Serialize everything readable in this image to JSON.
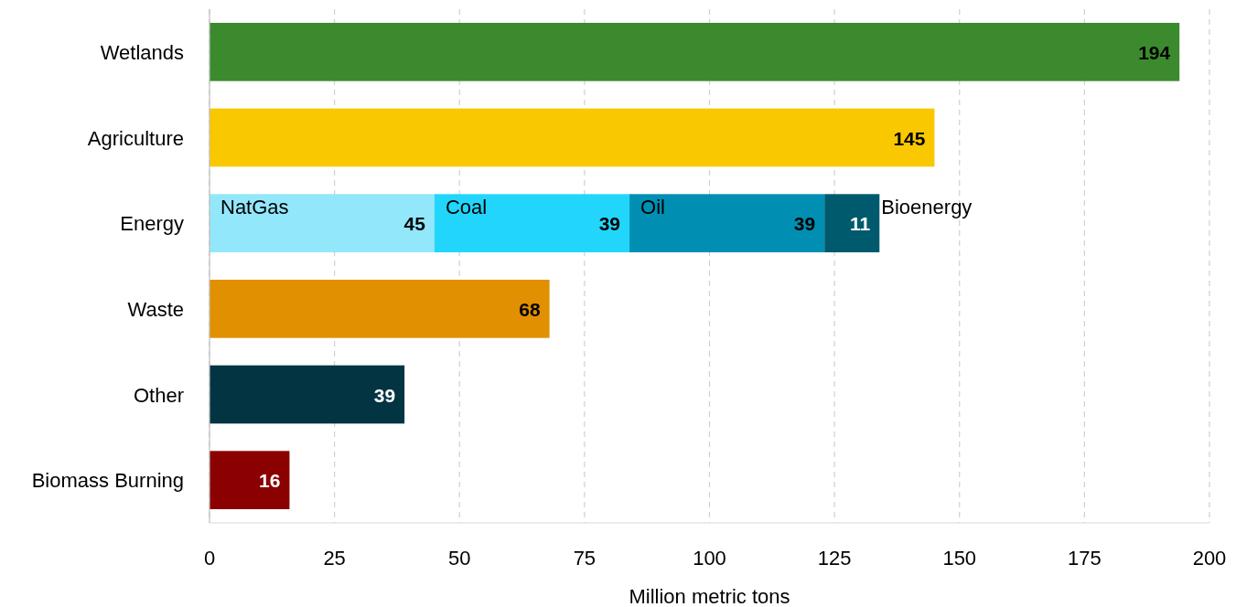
{
  "chart_data": {
    "type": "bar",
    "orientation": "horizontal",
    "stacked": true,
    "xlabel": "Million metric tons",
    "categories": [
      "Wetlands",
      "Agriculture",
      "Energy",
      "Waste",
      "Other",
      "Biomass Burning"
    ],
    "series": [
      {
        "colors": [
          "#3c8a2e",
          "#f9c800",
          null,
          "#e09000",
          "#023441",
          "#8b0000"
        ],
        "values": [
          194,
          145,
          null,
          68,
          39,
          16
        ]
      },
      {
        "name": "NatGas",
        "color": "#92e7fb",
        "values": [
          null,
          null,
          45,
          null,
          null,
          null
        ]
      },
      {
        "name": "Coal",
        "color": "#22d6fb",
        "values": [
          null,
          null,
          39,
          null,
          null,
          null
        ]
      },
      {
        "name": "Oil",
        "color": "#008fb3",
        "values": [
          null,
          null,
          39,
          null,
          null,
          null
        ]
      },
      {
        "name": "Bioenergy",
        "color": "#005a6e",
        "values": [
          null,
          null,
          11,
          null,
          null,
          null
        ]
      }
    ],
    "xlim": [
      0,
      200
    ],
    "xticks": [
      0,
      25,
      50,
      75,
      100,
      125,
      150,
      175,
      200
    ],
    "grid": "x",
    "data_labels": true
  }
}
